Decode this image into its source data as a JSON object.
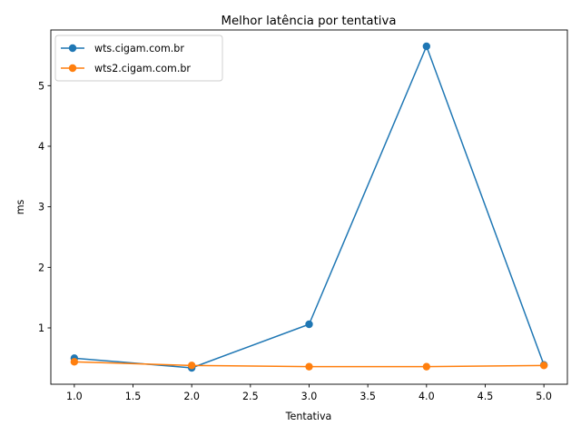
{
  "chart_data": {
    "type": "line",
    "title": "Melhor latência por tentativa",
    "xlabel": "Tentativa",
    "ylabel": "ms",
    "x": [
      1.0,
      2.0,
      3.0,
      4.0,
      5.0
    ],
    "xlim": [
      0.8,
      5.2
    ],
    "ylim": [
      0.07,
      5.92
    ],
    "xticks": [
      1.0,
      1.5,
      2.0,
      2.5,
      3.0,
      3.5,
      4.0,
      4.5,
      5.0
    ],
    "xtick_labels": [
      "1.0",
      "1.5",
      "2.0",
      "2.5",
      "3.0",
      "3.5",
      "4.0",
      "4.5",
      "5.0"
    ],
    "yticks": [
      1,
      2,
      3,
      4,
      5
    ],
    "ytick_labels": [
      "1",
      "2",
      "3",
      "4",
      "5"
    ],
    "grid": false,
    "legend_position": "top-left",
    "series": [
      {
        "name": "wts.cigam.com.br",
        "color": "#1f77b4",
        "values": [
          0.5,
          0.34,
          1.06,
          5.65,
          0.39
        ]
      },
      {
        "name": "wts2.cigam.com.br",
        "color": "#ff7f0e",
        "values": [
          0.44,
          0.38,
          0.36,
          0.36,
          0.38
        ]
      }
    ]
  }
}
